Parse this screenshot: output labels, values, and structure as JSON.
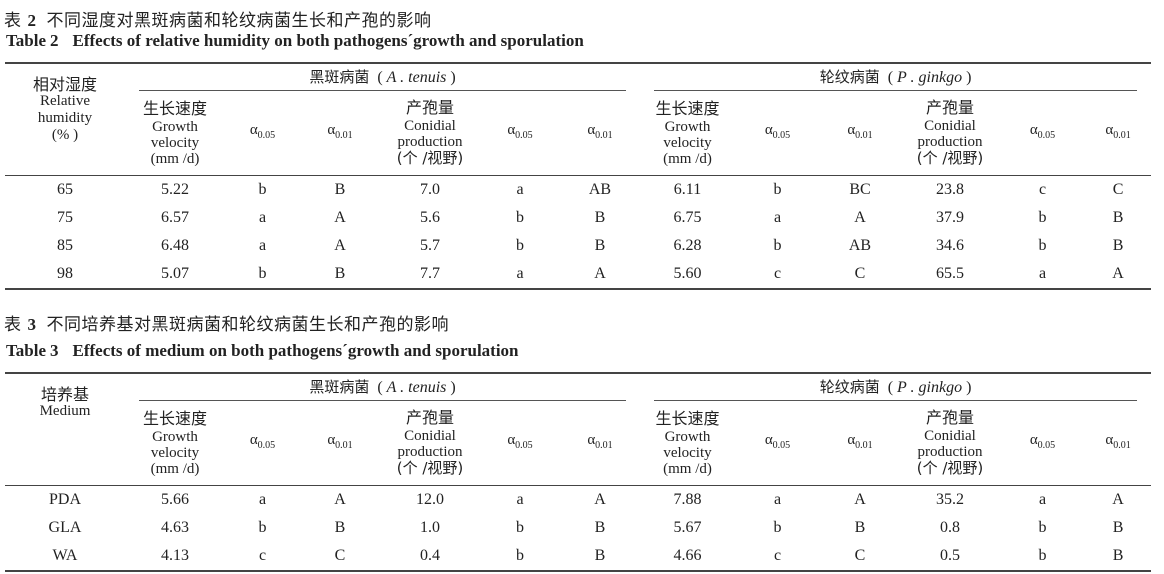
{
  "tables": [
    {
      "caption_cn_prefix": "表",
      "caption_num": "2",
      "caption_cn": "不同湿度对黑斑病菌和轮纹病菌生长和产孢的影响",
      "caption_en_prefix": "Table",
      "caption_en": "Effects of relative humidity on both pathogens´growth and sporulation",
      "row_header_cn": "相对湿度",
      "row_header_en": [
        "Relative",
        "humidity",
        "(% )"
      ],
      "groups": [
        {
          "cn": "黑斑病菌",
          "latin": "A . tenuis"
        },
        {
          "cn": "轮纹病菌",
          "latin": "P . ginkgo"
        }
      ],
      "rows": [
        [
          "65",
          "5.22",
          "b",
          "B",
          "7.0",
          "a",
          "AB",
          "6.11",
          "b",
          "BC",
          "23.8",
          "c",
          "C"
        ],
        [
          "75",
          "6.57",
          "a",
          "A",
          "5.6",
          "b",
          "B",
          "6.75",
          "a",
          "A",
          "37.9",
          "b",
          "B"
        ],
        [
          "85",
          "6.48",
          "a",
          "A",
          "5.7",
          "b",
          "B",
          "6.28",
          "b",
          "AB",
          "34.6",
          "b",
          "B"
        ],
        [
          "98",
          "5.07",
          "b",
          "B",
          "7.7",
          "a",
          "A",
          "5.60",
          "c",
          "C",
          "65.5",
          "a",
          "A"
        ]
      ]
    },
    {
      "caption_cn_prefix": "表",
      "caption_num": "3",
      "caption_cn": "不同培养基对黑斑病菌和轮纹病菌生长和产孢的影响",
      "caption_en_prefix": "Table",
      "caption_en": "Effects of medium on both pathogens´growth and sporulation",
      "row_header_cn": "培养基",
      "row_header_en": [
        "Medium"
      ],
      "groups": [
        {
          "cn": "黑斑病菌",
          "latin": "A . tenuis"
        },
        {
          "cn": "轮纹病菌",
          "latin": "P . ginkgo"
        }
      ],
      "rows": [
        [
          "PDA",
          "5.66",
          "a",
          "A",
          "12.0",
          "a",
          "A",
          "7.88",
          "a",
          "A",
          "35.2",
          "a",
          "A"
        ],
        [
          "GLA",
          "4.63",
          "b",
          "B",
          "1.0",
          "b",
          "B",
          "5.67",
          "b",
          "B",
          "0.8",
          "b",
          "B"
        ],
        [
          "WA",
          "4.13",
          "c",
          "C",
          "0.4",
          "b",
          "B",
          "4.66",
          "c",
          "C",
          "0.5",
          "b",
          "B"
        ]
      ]
    }
  ],
  "sub_headers": {
    "growth_cn": "生长速度",
    "growth_en": [
      "Growth",
      "velocity",
      "(mm /d)"
    ],
    "conidia_cn": "产孢量",
    "conidia_en": [
      "Conidial",
      "production"
    ],
    "conidia_unit": "(个 /视野)",
    "alpha_symbol": "α",
    "alpha_005": "0.05",
    "alpha_001": "0.01"
  }
}
